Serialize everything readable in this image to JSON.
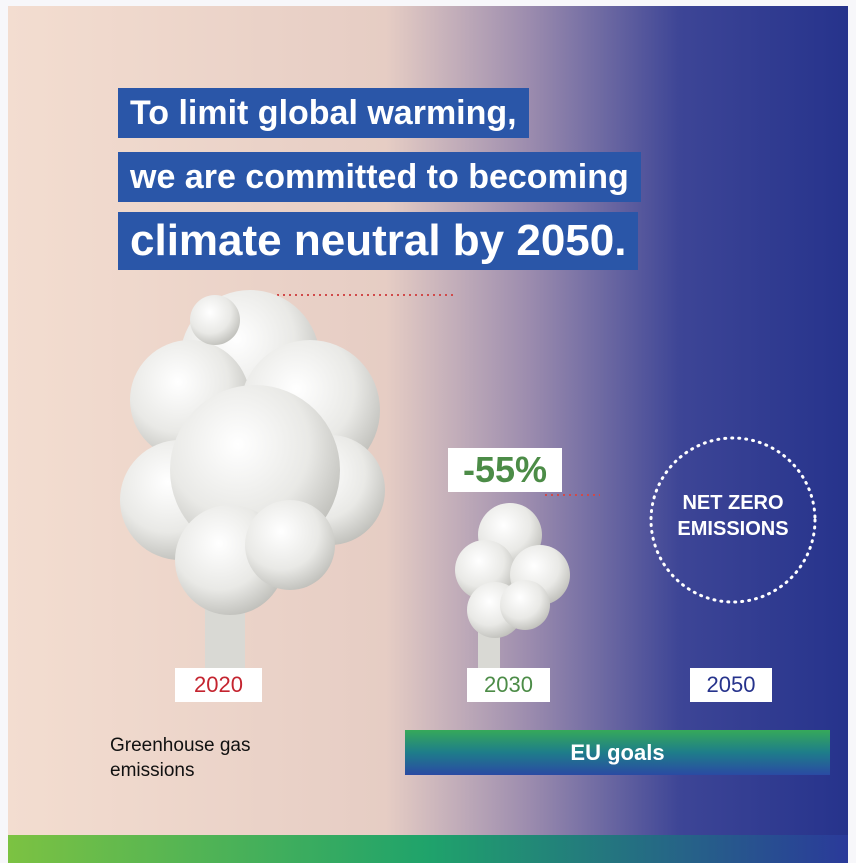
{
  "headline": {
    "lines": [
      "To limit global warming,",
      "we are committed to becoming",
      "climate neutral by 2050."
    ]
  },
  "milestones": [
    {
      "year": "2020"
    },
    {
      "year": "2030",
      "change": "-55%"
    },
    {
      "year": "2050",
      "label": "NET ZERO EMISSIONS"
    }
  ],
  "caption": "Greenhouse gas emissions",
  "goals_label": "EU goals"
}
